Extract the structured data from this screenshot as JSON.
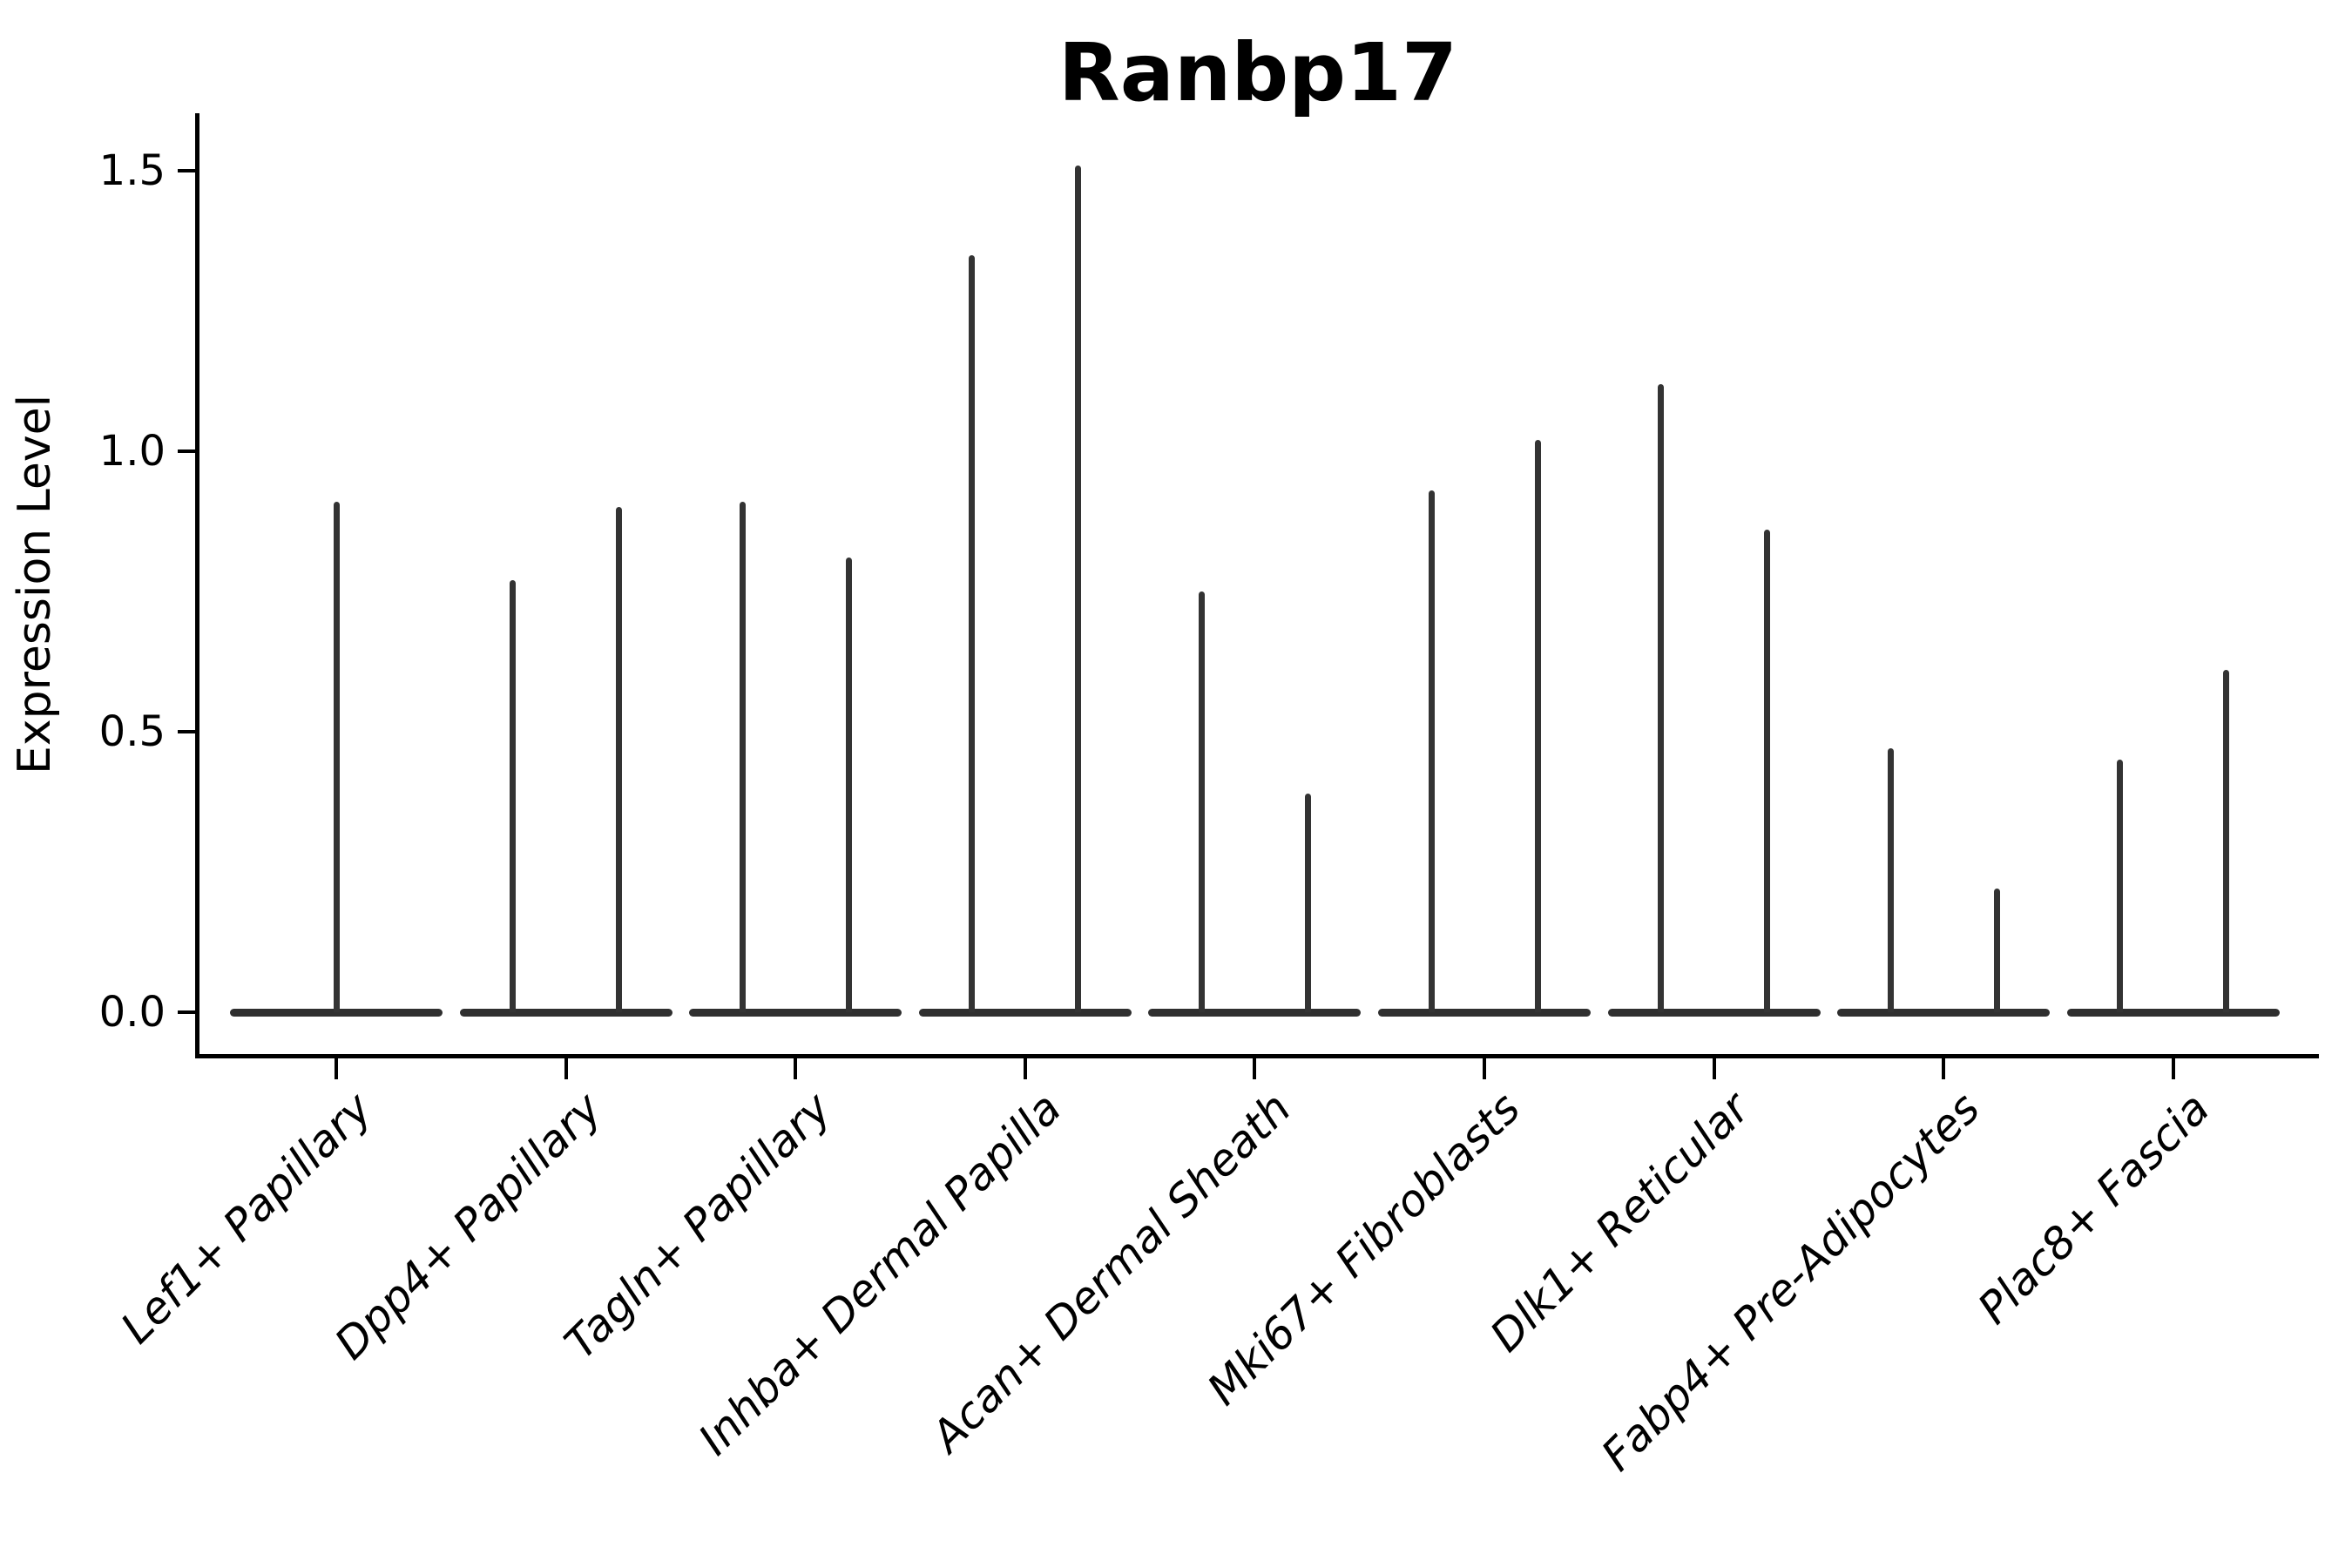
{
  "title": "Ranbp17",
  "y_axis": {
    "label": "Expression Level",
    "ticks": [
      {
        "label": "0.0",
        "value": 0.0
      },
      {
        "label": "0.5",
        "value": 0.5
      },
      {
        "label": "1.0",
        "value": 1.0
      },
      {
        "label": "1.5",
        "value": 1.5
      }
    ]
  },
  "chart_data": {
    "type": "violin",
    "title": "Ranbp17",
    "xlabel": "",
    "ylabel": "Expression Level",
    "ylim": [
      0,
      1.62
    ],
    "yticks": [
      0.0,
      0.5,
      1.0,
      1.5
    ],
    "grid": false,
    "legend": "none",
    "description": "Single-gene violin plot; every cell type has its expression mass concentrated at 0 (flat violin base) with extremely thin spikes reaching the maximum expression values listed per category.",
    "categories": [
      "Lef1+ Papillary",
      "Dpp4+ Papillary",
      "Tagln+ Papillary",
      "Inhba+ Dermal Papilla",
      "Acan+ Dermal Sheath",
      "Mki67+ Fibroblasts",
      "Dlk1+ Reticular",
      "Fabp4+ Pre-Adipocytes",
      "Plac8+ Fascia"
    ],
    "violins": [
      {
        "category": "Lef1+ Papillary",
        "bulk_value": 0.0,
        "spike_offsets": [
          0
        ],
        "spike_max_values": [
          0.91
        ]
      },
      {
        "category": "Dpp4+ Papillary",
        "bulk_value": 0.0,
        "spike_offsets": [
          -1,
          1
        ],
        "spike_max_values": [
          0.77,
          0.9
        ]
      },
      {
        "category": "Tagln+ Papillary",
        "bulk_value": 0.0,
        "spike_offsets": [
          -1,
          1
        ],
        "spike_max_values": [
          0.91,
          0.81
        ]
      },
      {
        "category": "Inhba+ Dermal Papilla",
        "bulk_value": 0.0,
        "spike_offsets": [
          -1,
          1
        ],
        "spike_max_values": [
          1.35,
          1.51
        ]
      },
      {
        "category": "Acan+ Dermal Sheath",
        "bulk_value": 0.0,
        "spike_offsets": [
          -1,
          1
        ],
        "spike_max_values": [
          0.75,
          0.39
        ]
      },
      {
        "category": "Mki67+ Fibroblasts",
        "bulk_value": 0.0,
        "spike_offsets": [
          -1,
          1
        ],
        "spike_max_values": [
          0.93,
          1.02
        ]
      },
      {
        "category": "Dlk1+ Reticular",
        "bulk_value": 0.0,
        "spike_offsets": [
          -1,
          1
        ],
        "spike_max_values": [
          1.12,
          0.86
        ]
      },
      {
        "category": "Fabp4+ Pre-Adipocytes",
        "bulk_value": 0.0,
        "spike_offsets": [
          -1,
          1
        ],
        "spike_max_values": [
          0.47,
          0.22
        ]
      },
      {
        "category": "Plac8+ Fascia",
        "bulk_value": 0.0,
        "spike_offsets": [
          -1,
          1
        ],
        "spike_max_values": [
          0.45,
          0.61
        ]
      }
    ],
    "colors": {
      "violin": "#2f2f2f",
      "spike": "#333333",
      "axis": "#000000",
      "text": "#000000",
      "background": "#ffffff"
    }
  }
}
